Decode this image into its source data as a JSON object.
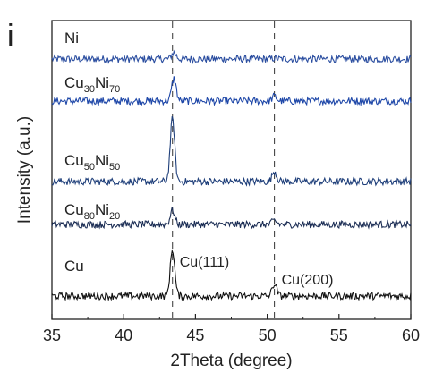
{
  "chart_data": {
    "type": "line",
    "panel_label": "i",
    "title": "",
    "xlabel": "2Theta (degree)",
    "ylabel": "Intensity (a.u.)",
    "xlim": [
      35,
      60
    ],
    "xticks": [
      "35",
      "40",
      "45",
      "50",
      "55",
      "60"
    ],
    "grid": false,
    "legend": "none",
    "reference_lines_x": [
      43.4,
      50.5
    ],
    "annotations": [
      {
        "text": "Cu(111)",
        "x": 43.9
      },
      {
        "text": "Cu(200)",
        "x": 51.0
      }
    ],
    "series": [
      {
        "name": "Ni",
        "label_main1": "Ni",
        "label_sub1": "",
        "label_main2": "",
        "label_sub2": "",
        "color": "#2b4ea0",
        "peaks": [
          {
            "x": 43.5,
            "height": 0.8
          },
          {
            "x": 50.5,
            "height": 0.1
          }
        ]
      },
      {
        "name": "Cu30Ni70",
        "label_main1": "Cu",
        "label_sub1": "30",
        "label_main2": "Ni",
        "label_sub2": "70",
        "color": "#1e47a8",
        "peaks": [
          {
            "x": 43.5,
            "height": 2.8
          },
          {
            "x": 50.5,
            "height": 0.6
          }
        ]
      },
      {
        "name": "Cu50Ni50",
        "label_main1": "Cu",
        "label_sub1": "50",
        "label_main2": "Ni",
        "label_sub2": "50",
        "color": "#1f3f7a",
        "peaks": [
          {
            "x": 43.4,
            "height": 7.8
          },
          {
            "x": 50.5,
            "height": 1.3
          }
        ]
      },
      {
        "name": "Cu80Ni20",
        "label_main1": "Cu",
        "label_sub1": "80",
        "label_main2": "Ni",
        "label_sub2": "20",
        "color": "#1c2e55",
        "peaks": [
          {
            "x": 43.4,
            "height": 1.8
          },
          {
            "x": 50.5,
            "height": 0.5
          }
        ]
      },
      {
        "name": "Cu",
        "label_main1": "Cu",
        "label_sub1": "",
        "label_main2": "",
        "label_sub2": "",
        "color": "#111111",
        "peaks": [
          {
            "x": 43.4,
            "height": 5.8
          },
          {
            "x": 50.5,
            "height": 1.5
          }
        ]
      }
    ]
  }
}
